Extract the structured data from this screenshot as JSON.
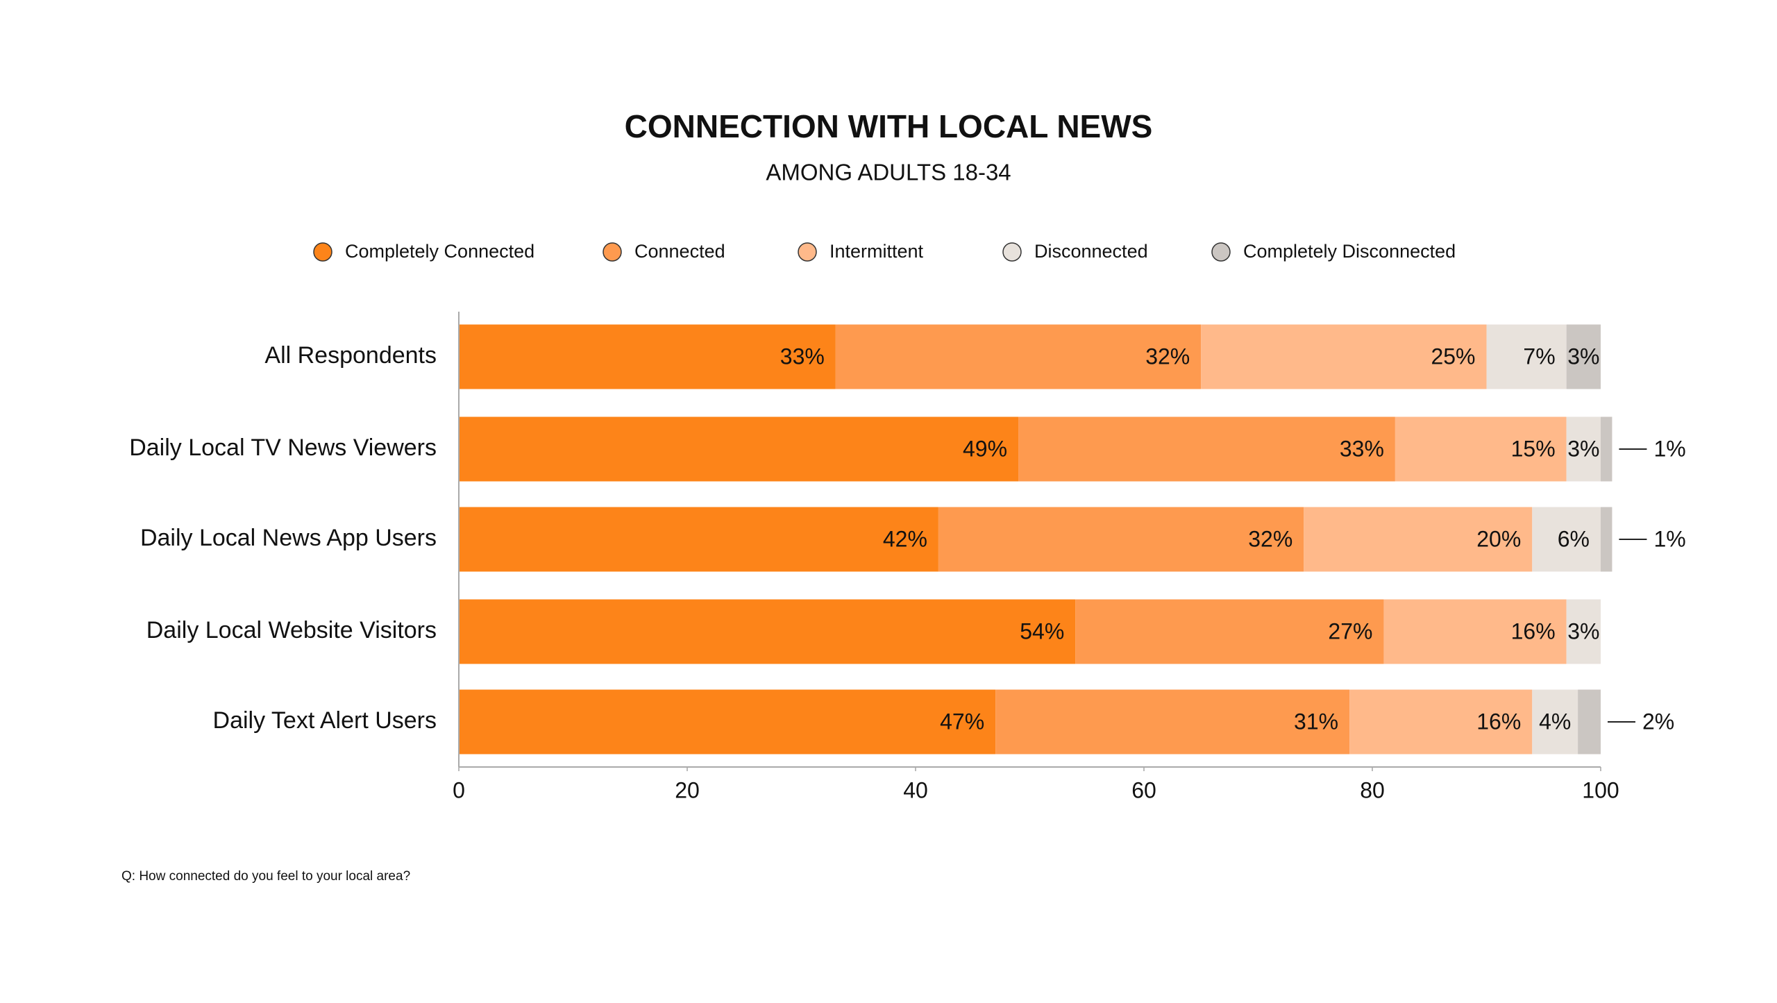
{
  "chart_data": {
    "type": "bar",
    "orientation": "horizontal",
    "stacked": true,
    "title": "CONNECTION WITH LOCAL NEWS",
    "subtitle": "AMONG ADULTS 18-34",
    "categories": [
      "All Respondents",
      "Daily Local TV News Viewers",
      "Daily Local News App Users",
      "Daily Local Website Visitors",
      "Daily Text Alert Users"
    ],
    "series": [
      {
        "name": "Completely Connected",
        "color": "#fd8419",
        "values": [
          33,
          49,
          42,
          54,
          47
        ],
        "value_labels": [
          "33%",
          "49%",
          "42%",
          "54%",
          "47%"
        ]
      },
      {
        "name": "Connected",
        "color": "#fe9a4f",
        "values": [
          32,
          33,
          32,
          27,
          31
        ],
        "value_labels": [
          "32%",
          "33%",
          "32%",
          "27%",
          "31%"
        ]
      },
      {
        "name": "Intermittent",
        "color": "#ffb98a",
        "values": [
          25,
          15,
          20,
          16,
          16
        ],
        "value_labels": [
          "25%",
          "15%",
          "20%",
          "16%",
          "16%"
        ]
      },
      {
        "name": "Disconnected",
        "color": "#e8e2dc",
        "values": [
          7,
          3,
          6,
          3,
          4
        ],
        "value_labels": [
          "7%",
          "3%",
          "6%",
          "3%",
          "4%"
        ]
      },
      {
        "name": "Completely Disconnected",
        "color": "#cbc6c2",
        "values": [
          3,
          1,
          1,
          null,
          2
        ],
        "value_labels": [
          "3%",
          "1%",
          "1%",
          null,
          "2%"
        ]
      }
    ],
    "xlim": [
      0,
      100
    ],
    "xticks": [
      0,
      20,
      40,
      60,
      80,
      100
    ],
    "footnote": "Q: How connected do you feel to your local area?"
  }
}
